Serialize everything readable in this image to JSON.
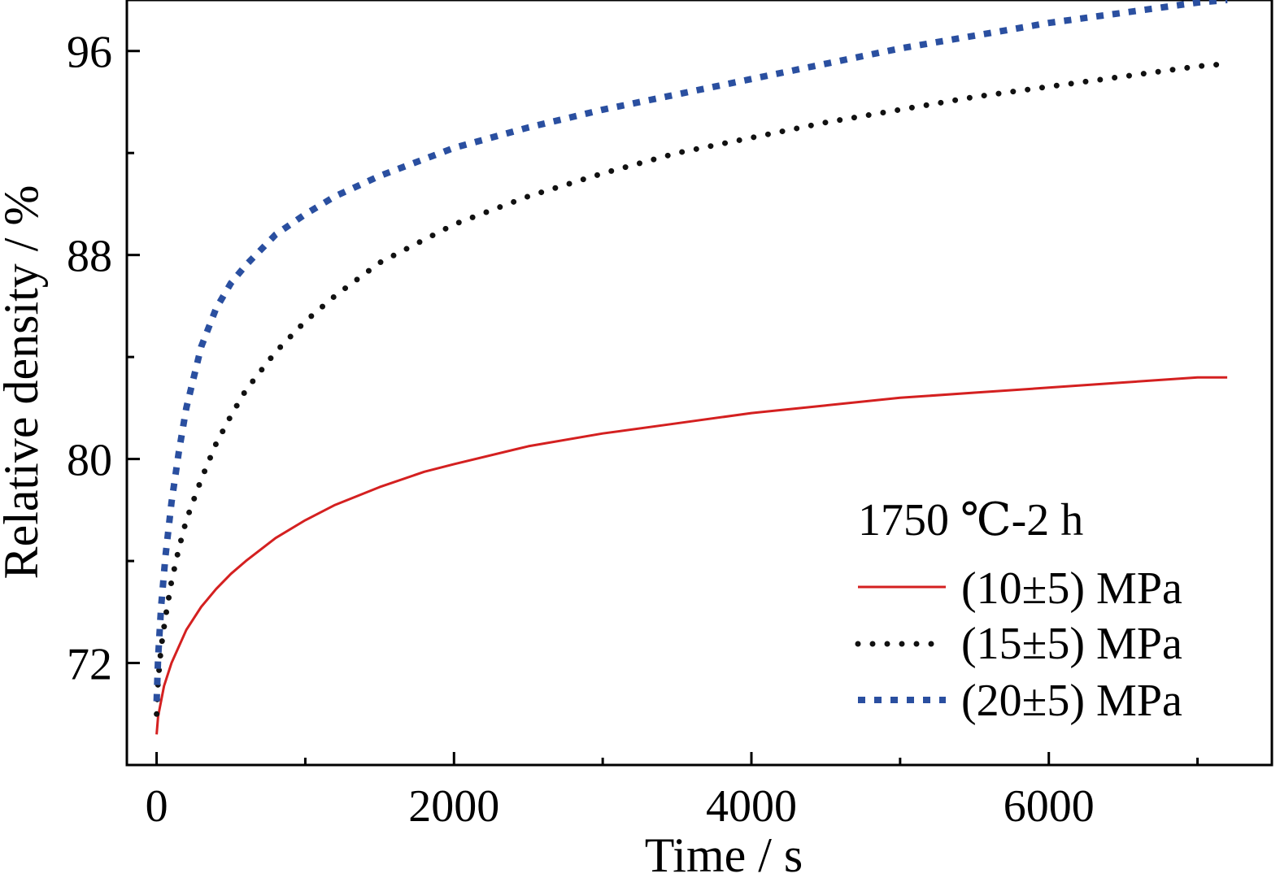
{
  "chart_data": {
    "type": "line",
    "title": "",
    "xlabel": "Time / s",
    "ylabel": "Relative density / %",
    "xlim": [
      -200,
      7500
    ],
    "ylim": [
      68,
      98
    ],
    "x_ticks": [
      0,
      2000,
      4000,
      6000
    ],
    "x_tick_labels": [
      "0",
      "2000",
      "4000",
      "6000"
    ],
    "x_minor_ticks": [
      1000,
      3000,
      5000,
      7000
    ],
    "y_ticks": [
      72,
      80,
      88,
      96
    ],
    "y_tick_labels": [
      "72",
      "80",
      "88",
      "96"
    ],
    "y_minor_ticks": [
      68,
      76,
      84,
      92
    ],
    "grid": false,
    "legend": {
      "placement": "bottom-right",
      "title": "1750 ℃-2 h"
    },
    "series": [
      {
        "name": "(10±5) MPa",
        "color": "#d42020",
        "style": "solid",
        "x": [
          0,
          10,
          50,
          100,
          200,
          300,
          400,
          500,
          600,
          800,
          1000,
          1200,
          1500,
          1800,
          2000,
          2500,
          3000,
          3500,
          4000,
          4500,
          5000,
          5500,
          6000,
          6500,
          7000,
          7200
        ],
        "y": [
          69.2,
          69.9,
          71.1,
          72.0,
          73.3,
          74.2,
          74.9,
          75.5,
          76.0,
          76.9,
          77.6,
          78.2,
          78.9,
          79.5,
          79.8,
          80.5,
          81.0,
          81.4,
          81.8,
          82.1,
          82.4,
          82.6,
          82.8,
          83.0,
          83.2,
          83.2
        ]
      },
      {
        "name": "(15±5) MPa",
        "color": "#111111",
        "style": "dotted",
        "x": [
          0,
          10,
          30,
          60,
          100,
          150,
          200,
          300,
          400,
          500,
          600,
          800,
          1000,
          1200,
          1500,
          2000,
          2500,
          3000,
          3500,
          4000,
          4500,
          5000,
          5500,
          6000,
          6500,
          7000,
          7200
        ],
        "y": [
          70.0,
          71.3,
          72.6,
          73.8,
          75.2,
          76.5,
          77.6,
          79.2,
          80.6,
          81.7,
          82.7,
          84.2,
          85.4,
          86.4,
          87.7,
          89.2,
          90.3,
          91.2,
          92.0,
          92.6,
          93.2,
          93.7,
          94.2,
          94.6,
          95.0,
          95.4,
          95.5
        ]
      },
      {
        "name": "(20±5) MPa",
        "color": "#2a4fa0",
        "style": "dashed",
        "x": [
          0,
          10,
          30,
          60,
          100,
          150,
          200,
          300,
          400,
          500,
          600,
          800,
          1000,
          1200,
          1500,
          2000,
          2500,
          3000,
          3500,
          4000,
          4500,
          5000,
          5500,
          6000,
          6500,
          7000,
          7200
        ],
        "y": [
          70.5,
          72.2,
          74.2,
          76.2,
          78.3,
          80.3,
          82.0,
          84.4,
          85.9,
          86.9,
          87.6,
          88.8,
          89.6,
          90.3,
          91.1,
          92.2,
          93.0,
          93.7,
          94.3,
          94.9,
          95.5,
          96.1,
          96.6,
          97.1,
          97.5,
          97.9,
          98.0
        ]
      }
    ]
  }
}
